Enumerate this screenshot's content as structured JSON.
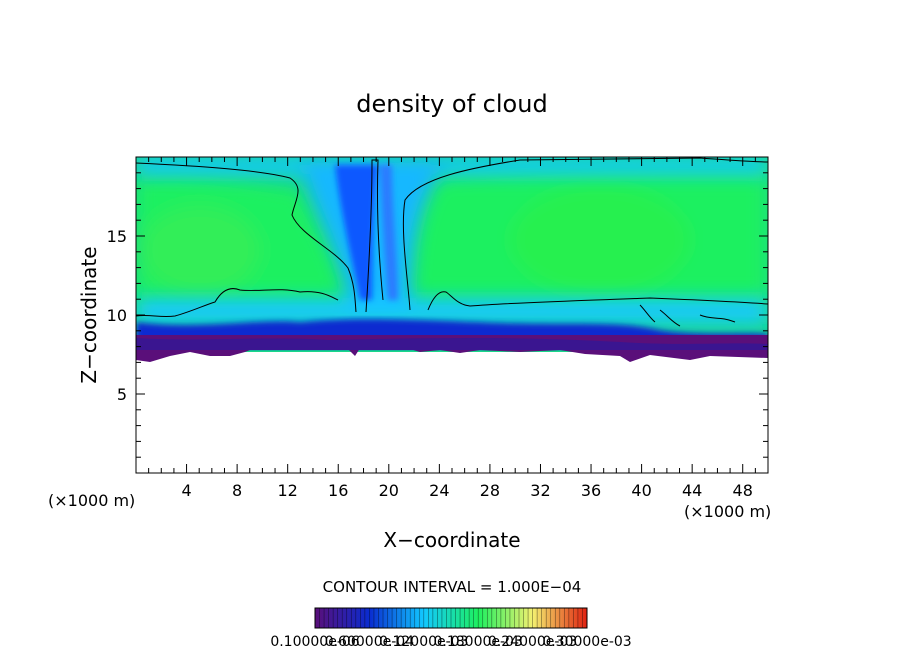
{
  "chart_data": {
    "type": "heatmap",
    "title": "density of cloud",
    "xlabel": "X−coordinate",
    "ylabel": "Z−coordinate",
    "x_unit": "(×1000 m)",
    "y_unit": "(×1000 m)",
    "xlim": [
      0,
      50
    ],
    "ylim": [
      0,
      20
    ],
    "x_ticks": [
      "4",
      "8",
      "12",
      "16",
      "20",
      "24",
      "28",
      "32",
      "36",
      "40",
      "44",
      "48"
    ],
    "y_ticks": [
      "5",
      "10",
      "15"
    ],
    "contour_interval_label": "CONTOUR INTERVAL = 1.000E−04",
    "colorbar_labels": [
      "0.10000e-06",
      "0.60000e-04",
      "0.12000e-03",
      "0.18000e-03",
      "0.24000e-03",
      "0.30000e-03"
    ],
    "colormap": [
      "#5a0f7a",
      "#0a2cd0",
      "#12c8ff",
      "#1ef060",
      "#f4f070",
      "#e02010"
    ],
    "field_layers": [
      {
        "level": "high",
        "color": "#1ef060",
        "z_range": [
          10,
          19.5
        ]
      },
      {
        "level": "mid",
        "color": "#12c8ff",
        "z_range": [
          9.8,
          19.8
        ]
      },
      {
        "level": "low",
        "color": "#0a2cd0",
        "z_range": [
          8.5,
          10
        ]
      },
      {
        "level": "lowest",
        "color": "#5a0f7a",
        "z_range": [
          7.3,
          8.8
        ]
      }
    ],
    "blank_below_z": 7.3
  }
}
